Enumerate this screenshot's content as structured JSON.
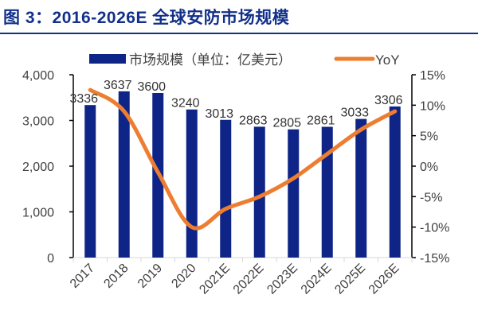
{
  "title": "图 3：2016-2026E 全球安防市场规模",
  "chart_data": {
    "type": "bar+line",
    "title": "图 3：2016-2026E 全球安防市场规模",
    "categories": [
      "2017",
      "2018",
      "2019",
      "2020",
      "2021E",
      "2022E",
      "2023E",
      "2024E",
      "2025E",
      "2026E"
    ],
    "series": [
      {
        "name": "市场规模（单位：亿美元）",
        "type": "bar",
        "axis": "left",
        "color": "#0e2587",
        "values": [
          3336,
          3637,
          3600,
          3240,
          3013,
          2863,
          2805,
          2861,
          3033,
          3306
        ]
      },
      {
        "name": "YoY",
        "type": "line",
        "axis": "right",
        "color": "#ED7D31",
        "smooth": true,
        "values": [
          12.5,
          9.0,
          -1.0,
          -10.0,
          -7.0,
          -5.0,
          -2.0,
          2.0,
          6.0,
          9.0
        ]
      }
    ],
    "y_left": {
      "range": [
        0,
        4000
      ],
      "ticks": [
        "0",
        "1,000",
        "2,000",
        "3,000",
        "4,000"
      ]
    },
    "y_right": {
      "range": [
        -15,
        15
      ],
      "ticks": [
        "-15%",
        "-10%",
        "-5%",
        "0%",
        "5%",
        "10%",
        "15%"
      ]
    },
    "legend": "top",
    "grid": false,
    "data_labels": true
  }
}
